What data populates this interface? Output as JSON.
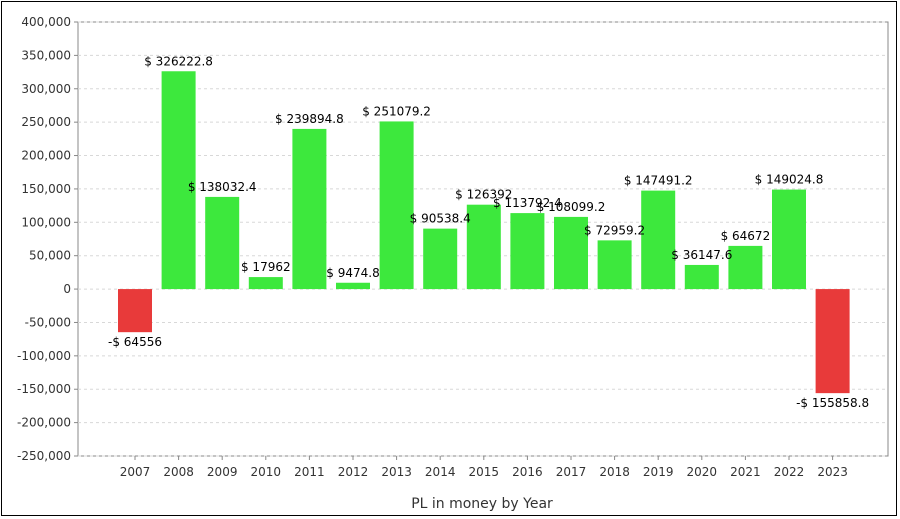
{
  "chart_data": {
    "type": "bar",
    "title": "",
    "xlabel": "PL in money by Year",
    "ylabel": "",
    "ylim": [
      -250000,
      400000
    ],
    "yticks": [
      400000,
      350000,
      300000,
      250000,
      200000,
      150000,
      100000,
      50000,
      0,
      -50000,
      -100000,
      -150000,
      -200000,
      -250000
    ],
    "ytick_labels": [
      "400,000",
      "350,000",
      "300,000",
      "250,000",
      "200,000",
      "150,000",
      "100,000",
      "50,000",
      "0",
      "-50,000",
      "-100,000",
      "-150,000",
      "-200,000",
      "-250,000"
    ],
    "categories": [
      "2007",
      "2008",
      "2009",
      "2010",
      "2011",
      "2012",
      "2013",
      "2014",
      "2015",
      "2016",
      "2017",
      "2018",
      "2019",
      "2020",
      "2021",
      "2022",
      "2023"
    ],
    "values": [
      -64556,
      326222.8,
      138032.4,
      17962,
      239894.8,
      9474.8,
      251079.2,
      90538.4,
      126392,
      113792.4,
      108099.2,
      72959.2,
      147491.2,
      36147.6,
      64672,
      149024.8,
      -155858.8
    ],
    "data_labels": [
      "-$ 64556",
      "$ 326222.8",
      "$ 138032.4",
      "$ 17962",
      "$ 239894.8",
      "$ 9474.8",
      "$ 251079.2",
      "$ 90538.4",
      "$ 126392",
      "$ 113792.4",
      "$ 108099.2",
      "$ 72959.2",
      "$ 147491.2",
      "$ 36147.6",
      "$ 64672",
      "$ 149024.8",
      "-$ 155858.8"
    ],
    "grid": true,
    "colors": {
      "positive": "#3de83d",
      "negative": "#e83a3a",
      "grid": "#d8d8d8",
      "axis": "#888888"
    }
  }
}
